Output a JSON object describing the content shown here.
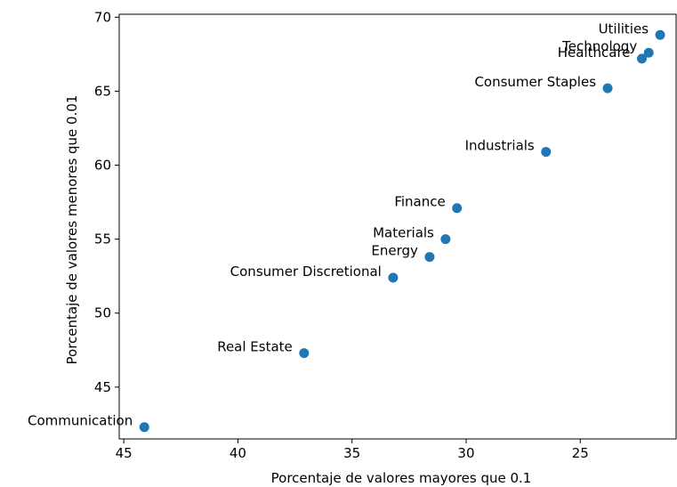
{
  "chart_data": {
    "type": "scatter",
    "xlabel": "Porcentaje de valores mayores que 0.1",
    "ylabel": "Porcentaje de valores menores que 0.01",
    "x_inverted": true,
    "xlim": [
      45.2,
      20.8
    ],
    "ylim": [
      41.5,
      70.2
    ],
    "xticks": [
      45,
      40,
      35,
      30,
      25
    ],
    "yticks": [
      45,
      50,
      55,
      60,
      65,
      70
    ],
    "grid": false,
    "marker_color": "#1f77b4",
    "points": [
      {
        "label": "Utilities",
        "x": 21.5,
        "y": 68.8
      },
      {
        "label": "Technology",
        "x": 22.0,
        "y": 67.6
      },
      {
        "label": "Healthcare",
        "x": 22.3,
        "y": 67.2
      },
      {
        "label": "Consumer Staples",
        "x": 23.8,
        "y": 65.2
      },
      {
        "label": "Industrials",
        "x": 26.5,
        "y": 60.9
      },
      {
        "label": "Finance",
        "x": 30.4,
        "y": 57.1
      },
      {
        "label": "Materials",
        "x": 30.9,
        "y": 55.0
      },
      {
        "label": "Energy",
        "x": 31.6,
        "y": 53.8
      },
      {
        "label": "Consumer Discretional",
        "x": 33.2,
        "y": 52.4
      },
      {
        "label": "Real Estate",
        "x": 37.1,
        "y": 47.3
      },
      {
        "label": "Communication",
        "x": 44.1,
        "y": 42.3
      }
    ]
  }
}
